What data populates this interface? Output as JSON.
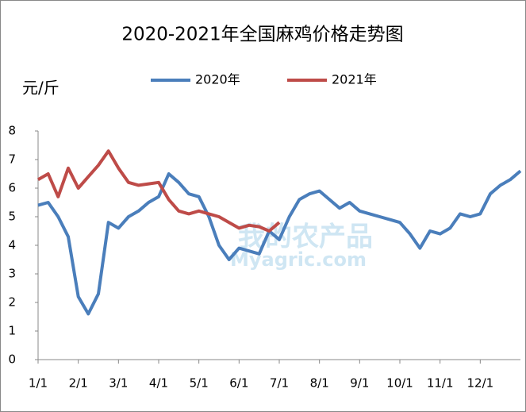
{
  "chart_data": {
    "type": "line",
    "title": "2020-2021年全国麻鸡价格走势图",
    "y_label": "元/斤",
    "watermark": [
      "我的农产品",
      "Myagric.com"
    ],
    "categories": [
      "1/1",
      null,
      null,
      null,
      "2/1",
      null,
      null,
      null,
      "3/1",
      null,
      null,
      null,
      "4/1",
      null,
      null,
      null,
      "5/1",
      null,
      null,
      null,
      "6/1",
      null,
      null,
      null,
      "7/1",
      null,
      null,
      null,
      "8/1",
      null,
      null,
      null,
      "9/1",
      null,
      null,
      null,
      "10/1",
      null,
      null,
      null,
      "11/1",
      null,
      null,
      null,
      "12/1",
      null,
      null,
      null,
      null
    ],
    "series": [
      {
        "name": "2020年",
        "color": "#4a7ebb",
        "values": [
          5.4,
          5.5,
          5.0,
          4.3,
          2.2,
          1.6,
          2.3,
          4.8,
          4.6,
          5.0,
          5.2,
          5.5,
          5.7,
          6.5,
          6.2,
          5.8,
          5.7,
          5.0,
          4.0,
          3.5,
          3.9,
          3.8,
          3.7,
          4.5,
          4.2,
          5.0,
          5.6,
          5.8,
          5.9,
          5.6,
          5.3,
          5.5,
          5.2,
          5.1,
          5.0,
          4.9,
          4.8,
          4.4,
          3.9,
          4.5,
          4.4,
          4.6,
          5.1,
          5.0,
          5.1,
          5.8,
          6.1,
          6.3,
          6.6
        ]
      },
      {
        "name": "2021年",
        "color": "#be4b48",
        "values": [
          6.3,
          6.5,
          5.7,
          6.7,
          6.0,
          6.4,
          6.8,
          7.3,
          6.7,
          6.2,
          6.1,
          6.15,
          6.2,
          5.6,
          5.2,
          5.1,
          5.2,
          5.1,
          5.0,
          4.8,
          4.6,
          4.7,
          4.65,
          4.5,
          4.8,
          null,
          null,
          null,
          null,
          null,
          null,
          null,
          null,
          null,
          null,
          null,
          null,
          null,
          null,
          null,
          null,
          null,
          null,
          null,
          null,
          null,
          null,
          null,
          null
        ]
      }
    ],
    "ylim": [
      0,
      8
    ],
    "yticks": [
      0,
      1,
      2,
      3,
      4,
      5,
      6,
      7,
      8
    ],
    "legend": "top"
  }
}
